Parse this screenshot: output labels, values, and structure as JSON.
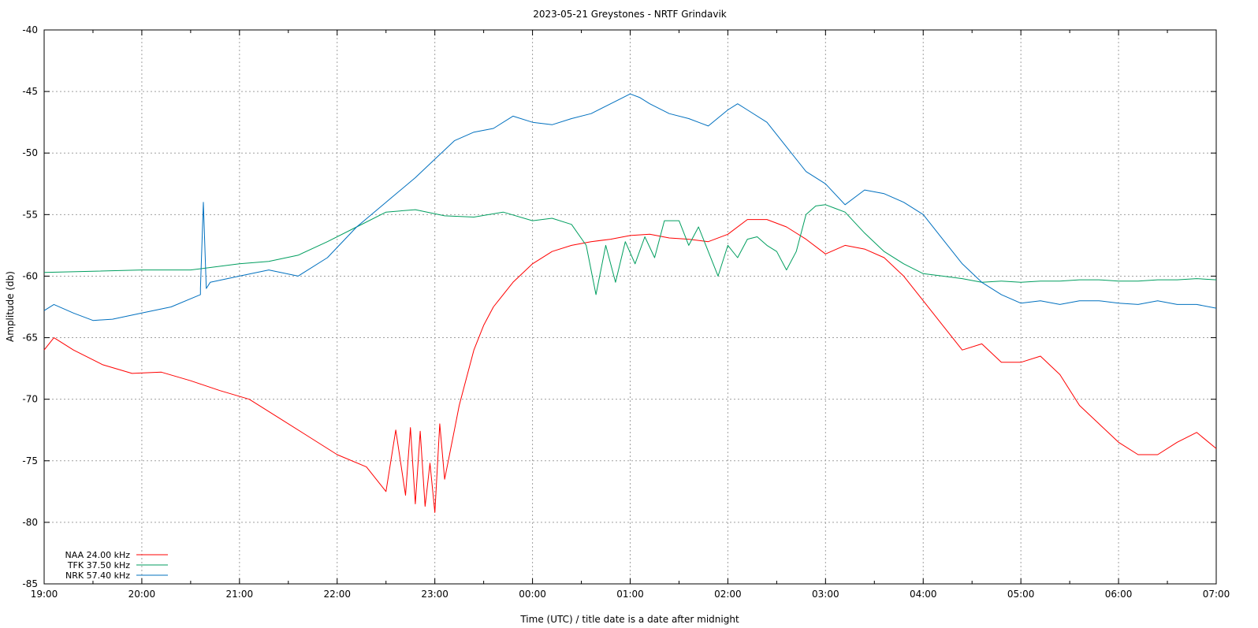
{
  "chart_data": {
    "type": "line",
    "title": "2023-05-21 Greystones - NRTF Grindavik",
    "xlabel": "Time (UTC) / title date is a date after midnight",
    "ylabel": "Amplitude (db)",
    "xlim": [
      0,
      12
    ],
    "ylim": [
      -85,
      -40
    ],
    "x_ticks": [
      "19:00",
      "20:00",
      "21:00",
      "22:00",
      "23:00",
      "00:00",
      "01:00",
      "02:00",
      "03:00",
      "04:00",
      "05:00",
      "06:00",
      "07:00"
    ],
    "y_ticks": [
      "-40",
      "-45",
      "-50",
      "-55",
      "-60",
      "-65",
      "-70",
      "-75",
      "-80",
      "-85"
    ],
    "grid": true,
    "legend_position": "bottom-left",
    "series": [
      {
        "name": "NAA 24.00 kHz",
        "color": "#ff0000",
        "x": [
          0,
          0.1,
          0.3,
          0.6,
          0.9,
          1.2,
          1.5,
          1.8,
          2.1,
          2.4,
          2.7,
          3.0,
          3.3,
          3.5,
          3.6,
          3.7,
          3.75,
          3.8,
          3.85,
          3.9,
          3.95,
          4.0,
          4.05,
          4.1,
          4.15,
          4.2,
          4.25,
          4.3,
          4.35,
          4.4,
          4.5,
          4.6,
          4.8,
          5.0,
          5.2,
          5.4,
          5.6,
          5.8,
          6.0,
          6.2,
          6.4,
          6.6,
          6.8,
          7.0,
          7.2,
          7.4,
          7.6,
          7.8,
          8.0,
          8.2,
          8.4,
          8.6,
          8.8,
          9.0,
          9.2,
          9.4,
          9.6,
          9.8,
          10.0,
          10.2,
          10.4,
          10.6,
          10.8,
          11.0,
          11.2,
          11.4,
          11.6,
          11.8,
          12.0
        ],
        "values": [
          -66.0,
          -65.0,
          -66.0,
          -67.2,
          -67.9,
          -67.8,
          -68.5,
          -69.3,
          -70.0,
          -71.5,
          -73.0,
          -74.5,
          -75.5,
          -77.5,
          -72.5,
          -77.8,
          -72.3,
          -78.5,
          -72.6,
          -78.7,
          -75.2,
          -79.2,
          -72.0,
          -76.5,
          -74.5,
          -72.5,
          -70.5,
          -69.0,
          -67.5,
          -66.0,
          -64.0,
          -62.5,
          -60.5,
          -59.0,
          -58.0,
          -57.5,
          -57.2,
          -57.0,
          -56.7,
          -56.6,
          -56.9,
          -57.0,
          -57.2,
          -56.6,
          -55.4,
          -55.4,
          -56.0,
          -57.0,
          -58.2,
          -57.5,
          -57.8,
          -58.5,
          -60.0,
          -62.0,
          -64.0,
          -66.0,
          -65.5,
          -67.0,
          -67.0,
          -66.5,
          -68.0,
          -70.5,
          -72.0,
          -73.5,
          -74.5,
          -74.5,
          -73.5,
          -72.7,
          -74.0
        ]
      },
      {
        "name": "TFK 37.50 kHz",
        "color": "#009e5f",
        "x": [
          0,
          0.5,
          1.0,
          1.5,
          2.0,
          2.3,
          2.6,
          2.9,
          3.2,
          3.5,
          3.8,
          4.1,
          4.4,
          4.7,
          5.0,
          5.2,
          5.4,
          5.55,
          5.65,
          5.75,
          5.85,
          5.95,
          6.05,
          6.15,
          6.25,
          6.35,
          6.5,
          6.6,
          6.7,
          6.8,
          6.9,
          7.0,
          7.1,
          7.2,
          7.3,
          7.4,
          7.5,
          7.6,
          7.7,
          7.8,
          7.9,
          8.0,
          8.1,
          8.2,
          8.4,
          8.6,
          8.8,
          9.0,
          9.2,
          9.4,
          9.6,
          9.8,
          10.0,
          10.2,
          10.4,
          10.6,
          10.8,
          11.0,
          11.2,
          11.4,
          11.6,
          11.8,
          12.0
        ],
        "values": [
          -59.7,
          -59.6,
          -59.5,
          -59.5,
          -59.0,
          -58.8,
          -58.3,
          -57.2,
          -56.0,
          -54.8,
          -54.6,
          -55.1,
          -55.2,
          -54.8,
          -55.5,
          -55.3,
          -55.8,
          -57.5,
          -61.5,
          -57.5,
          -60.5,
          -57.2,
          -59.0,
          -56.8,
          -58.5,
          -55.5,
          -55.5,
          -57.5,
          -56.0,
          -58.0,
          -60.0,
          -57.5,
          -58.5,
          -57.0,
          -56.8,
          -57.5,
          -58.0,
          -59.5,
          -58.0,
          -55.0,
          -54.3,
          -54.2,
          -54.5,
          -54.8,
          -56.5,
          -58.0,
          -59.0,
          -59.8,
          -60.0,
          -60.2,
          -60.5,
          -60.4,
          -60.5,
          -60.4,
          -60.4,
          -60.3,
          -60.3,
          -60.4,
          -60.4,
          -60.3,
          -60.3,
          -60.2,
          -60.3
        ]
      },
      {
        "name": "NRK 57.40 kHz",
        "color": "#0070bf",
        "x": [
          0,
          0.1,
          0.3,
          0.5,
          0.7,
          1.0,
          1.3,
          1.6,
          1.6,
          1.63,
          1.66,
          1.7,
          2.0,
          2.3,
          2.6,
          2.9,
          3.2,
          3.5,
          3.8,
          4.0,
          4.2,
          4.4,
          4.6,
          4.8,
          5.0,
          5.2,
          5.4,
          5.6,
          5.8,
          6.0,
          6.1,
          6.2,
          6.4,
          6.6,
          6.8,
          7.0,
          7.1,
          7.2,
          7.4,
          7.6,
          7.8,
          8.0,
          8.2,
          8.4,
          8.6,
          8.8,
          9.0,
          9.2,
          9.4,
          9.6,
          9.8,
          10.0,
          10.2,
          10.4,
          10.6,
          10.8,
          11.0,
          11.2,
          11.4,
          11.6,
          11.8,
          12.0
        ],
        "values": [
          -62.8,
          -62.3,
          -63.0,
          -63.6,
          -63.5,
          -63.0,
          -62.5,
          -61.5,
          -61.0,
          -54.0,
          -61.0,
          -60.5,
          -60.0,
          -59.5,
          -60.0,
          -58.5,
          -56.0,
          -54.0,
          -52.0,
          -50.5,
          -49.0,
          -48.3,
          -48.0,
          -47.0,
          -47.5,
          -47.7,
          -47.2,
          -46.8,
          -46.0,
          -45.2,
          -45.5,
          -46.0,
          -46.8,
          -47.2,
          -47.8,
          -46.5,
          -46.0,
          -46.5,
          -47.5,
          -49.5,
          -51.5,
          -52.5,
          -54.2,
          -53.0,
          -53.3,
          -54.0,
          -55.0,
          -57.0,
          -59.0,
          -60.5,
          -61.5,
          -62.2,
          -62.0,
          -62.3,
          -62.0,
          -62.0,
          -62.2,
          -62.3,
          -62.0,
          -62.3,
          -62.3,
          -62.6
        ]
      }
    ]
  }
}
